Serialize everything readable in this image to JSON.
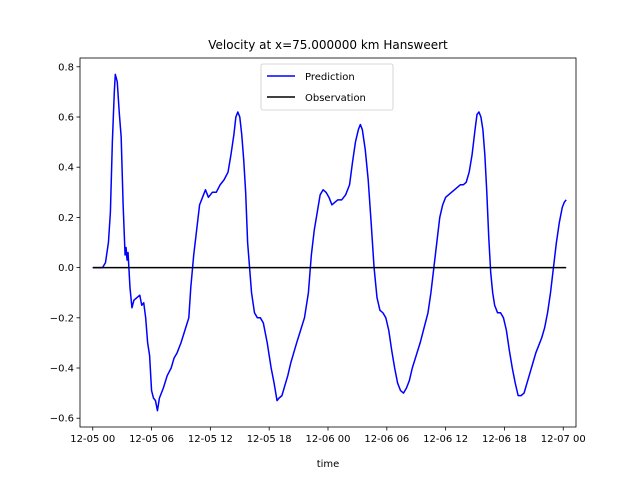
{
  "chart_data": {
    "type": "line",
    "title": "Velocity at x=75.000000 km Hansweert",
    "xlabel": "time",
    "ylabel": "",
    "x_unit": "hours since 12-05 00",
    "xlim": [
      -1.3,
      49.3
    ],
    "ylim": [
      -0.635,
      0.835
    ],
    "x_ticks": [
      {
        "value": 0,
        "label": "12-05 00"
      },
      {
        "value": 6,
        "label": "12-05 06"
      },
      {
        "value": 12,
        "label": "12-05 12"
      },
      {
        "value": 18,
        "label": "12-05 18"
      },
      {
        "value": 24,
        "label": "12-06 00"
      },
      {
        "value": 30,
        "label": "12-06 06"
      },
      {
        "value": 36,
        "label": "12-06 12"
      },
      {
        "value": 42,
        "label": "12-06 18"
      },
      {
        "value": 48,
        "label": "12-07 00"
      }
    ],
    "y_ticks": [
      {
        "value": -0.6,
        "label": "−0.6"
      },
      {
        "value": -0.4,
        "label": "−0.4"
      },
      {
        "value": -0.2,
        "label": "−0.2"
      },
      {
        "value": 0.0,
        "label": "0.0"
      },
      {
        "value": 0.2,
        "label": "0.2"
      },
      {
        "value": 0.4,
        "label": "0.4"
      },
      {
        "value": 0.6,
        "label": "0.6"
      },
      {
        "value": 0.8,
        "label": "0.8"
      }
    ],
    "grid": false,
    "legend_position": "top-center",
    "series": [
      {
        "name": "Prediction",
        "color": "#0000ff",
        "points": [
          [
            0,
            0
          ],
          [
            0.5,
            0
          ],
          [
            1,
            0
          ],
          [
            1.3,
            0.02
          ],
          [
            1.6,
            0.1
          ],
          [
            1.8,
            0.22
          ],
          [
            2,
            0.5
          ],
          [
            2.2,
            0.7
          ],
          [
            2.3,
            0.77
          ],
          [
            2.5,
            0.74
          ],
          [
            2.7,
            0.62
          ],
          [
            2.9,
            0.52
          ],
          [
            3.1,
            0.25
          ],
          [
            3.3,
            0.05
          ],
          [
            3.4,
            0.08
          ],
          [
            3.5,
            0.03
          ],
          [
            3.6,
            0.06
          ],
          [
            3.8,
            -0.08
          ],
          [
            4,
            -0.16
          ],
          [
            4.2,
            -0.13
          ],
          [
            4.5,
            -0.12
          ],
          [
            4.8,
            -0.11
          ],
          [
            5,
            -0.15
          ],
          [
            5.2,
            -0.14
          ],
          [
            5.4,
            -0.2
          ],
          [
            5.6,
            -0.3
          ],
          [
            5.8,
            -0.35
          ],
          [
            6,
            -0.49
          ],
          [
            6.2,
            -0.52
          ],
          [
            6.4,
            -0.53
          ],
          [
            6.6,
            -0.57
          ],
          [
            6.8,
            -0.52
          ],
          [
            7.2,
            -0.48
          ],
          [
            7.6,
            -0.43
          ],
          [
            8,
            -0.4
          ],
          [
            8.3,
            -0.36
          ],
          [
            8.6,
            -0.34
          ],
          [
            9,
            -0.3
          ],
          [
            9.4,
            -0.25
          ],
          [
            9.8,
            -0.2
          ],
          [
            10,
            -0.08
          ],
          [
            10.3,
            0.05
          ],
          [
            10.6,
            0.15
          ],
          [
            10.9,
            0.25
          ],
          [
            11.2,
            0.28
          ],
          [
            11.5,
            0.31
          ],
          [
            11.8,
            0.28
          ],
          [
            12.2,
            0.3
          ],
          [
            12.6,
            0.3
          ],
          [
            13,
            0.33
          ],
          [
            13.4,
            0.35
          ],
          [
            13.8,
            0.38
          ],
          [
            14.1,
            0.45
          ],
          [
            14.4,
            0.53
          ],
          [
            14.6,
            0.6
          ],
          [
            14.8,
            0.62
          ],
          [
            15,
            0.6
          ],
          [
            15.2,
            0.53
          ],
          [
            15.4,
            0.43
          ],
          [
            15.6,
            0.3
          ],
          [
            15.8,
            0.1
          ],
          [
            16,
            0
          ],
          [
            16.2,
            -0.1
          ],
          [
            16.5,
            -0.18
          ],
          [
            16.8,
            -0.2
          ],
          [
            17.1,
            -0.2
          ],
          [
            17.4,
            -0.22
          ],
          [
            17.8,
            -0.3
          ],
          [
            18.2,
            -0.4
          ],
          [
            18.5,
            -0.46
          ],
          [
            18.8,
            -0.53
          ],
          [
            19,
            -0.52
          ],
          [
            19.3,
            -0.51
          ],
          [
            19.6,
            -0.47
          ],
          [
            19.9,
            -0.43
          ],
          [
            20.2,
            -0.38
          ],
          [
            20.5,
            -0.34
          ],
          [
            20.8,
            -0.3
          ],
          [
            21.2,
            -0.25
          ],
          [
            21.6,
            -0.2
          ],
          [
            22,
            -0.1
          ],
          [
            22.3,
            0.05
          ],
          [
            22.6,
            0.15
          ],
          [
            22.9,
            0.22
          ],
          [
            23.2,
            0.29
          ],
          [
            23.5,
            0.31
          ],
          [
            23.8,
            0.3
          ],
          [
            24.1,
            0.28
          ],
          [
            24.4,
            0.25
          ],
          [
            24.7,
            0.26
          ],
          [
            25,
            0.27
          ],
          [
            25.4,
            0.27
          ],
          [
            25.8,
            0.29
          ],
          [
            26.2,
            0.33
          ],
          [
            26.5,
            0.42
          ],
          [
            26.8,
            0.5
          ],
          [
            27.1,
            0.55
          ],
          [
            27.3,
            0.57
          ],
          [
            27.5,
            0.55
          ],
          [
            27.8,
            0.47
          ],
          [
            28.1,
            0.35
          ],
          [
            28.4,
            0.18
          ],
          [
            28.7,
            0
          ],
          [
            29,
            -0.12
          ],
          [
            29.3,
            -0.17
          ],
          [
            29.6,
            -0.18
          ],
          [
            29.9,
            -0.2
          ],
          [
            30.2,
            -0.25
          ],
          [
            30.5,
            -0.33
          ],
          [
            30.8,
            -0.4
          ],
          [
            31.1,
            -0.46
          ],
          [
            31.4,
            -0.49
          ],
          [
            31.7,
            -0.5
          ],
          [
            32,
            -0.48
          ],
          [
            32.3,
            -0.45
          ],
          [
            32.6,
            -0.4
          ],
          [
            33,
            -0.35
          ],
          [
            33.4,
            -0.3
          ],
          [
            33.8,
            -0.24
          ],
          [
            34.2,
            -0.18
          ],
          [
            34.5,
            -0.1
          ],
          [
            34.8,
            0
          ],
          [
            35.1,
            0.1
          ],
          [
            35.4,
            0.2
          ],
          [
            35.7,
            0.25
          ],
          [
            36,
            0.28
          ],
          [
            36.3,
            0.29
          ],
          [
            36.6,
            0.3
          ],
          [
            36.9,
            0.31
          ],
          [
            37.2,
            0.32
          ],
          [
            37.5,
            0.33
          ],
          [
            37.8,
            0.33
          ],
          [
            38.1,
            0.34
          ],
          [
            38.4,
            0.38
          ],
          [
            38.7,
            0.45
          ],
          [
            39,
            0.55
          ],
          [
            39.2,
            0.61
          ],
          [
            39.4,
            0.62
          ],
          [
            39.6,
            0.6
          ],
          [
            39.8,
            0.55
          ],
          [
            40,
            0.45
          ],
          [
            40.2,
            0.3
          ],
          [
            40.4,
            0.12
          ],
          [
            40.6,
            -0.02
          ],
          [
            40.8,
            -0.1
          ],
          [
            41,
            -0.15
          ],
          [
            41.3,
            -0.18
          ],
          [
            41.6,
            -0.18
          ],
          [
            41.9,
            -0.2
          ],
          [
            42.2,
            -0.25
          ],
          [
            42.5,
            -0.33
          ],
          [
            42.8,
            -0.4
          ],
          [
            43.1,
            -0.46
          ],
          [
            43.4,
            -0.51
          ],
          [
            43.7,
            -0.51
          ],
          [
            44,
            -0.5
          ],
          [
            44.3,
            -0.46
          ],
          [
            44.6,
            -0.42
          ],
          [
            44.9,
            -0.38
          ],
          [
            45.2,
            -0.34
          ],
          [
            45.5,
            -0.31
          ],
          [
            45.8,
            -0.28
          ],
          [
            46.1,
            -0.24
          ],
          [
            46.4,
            -0.18
          ],
          [
            46.7,
            -0.1
          ],
          [
            47,
            0
          ],
          [
            47.3,
            0.1
          ],
          [
            47.6,
            0.18
          ],
          [
            47.9,
            0.24
          ],
          [
            48.1,
            0.26
          ],
          [
            48.3,
            0.27
          ]
        ]
      },
      {
        "name": "Observation",
        "color": "#000000",
        "points": [
          [
            0,
            0
          ],
          [
            48.3,
            0
          ]
        ]
      }
    ]
  }
}
